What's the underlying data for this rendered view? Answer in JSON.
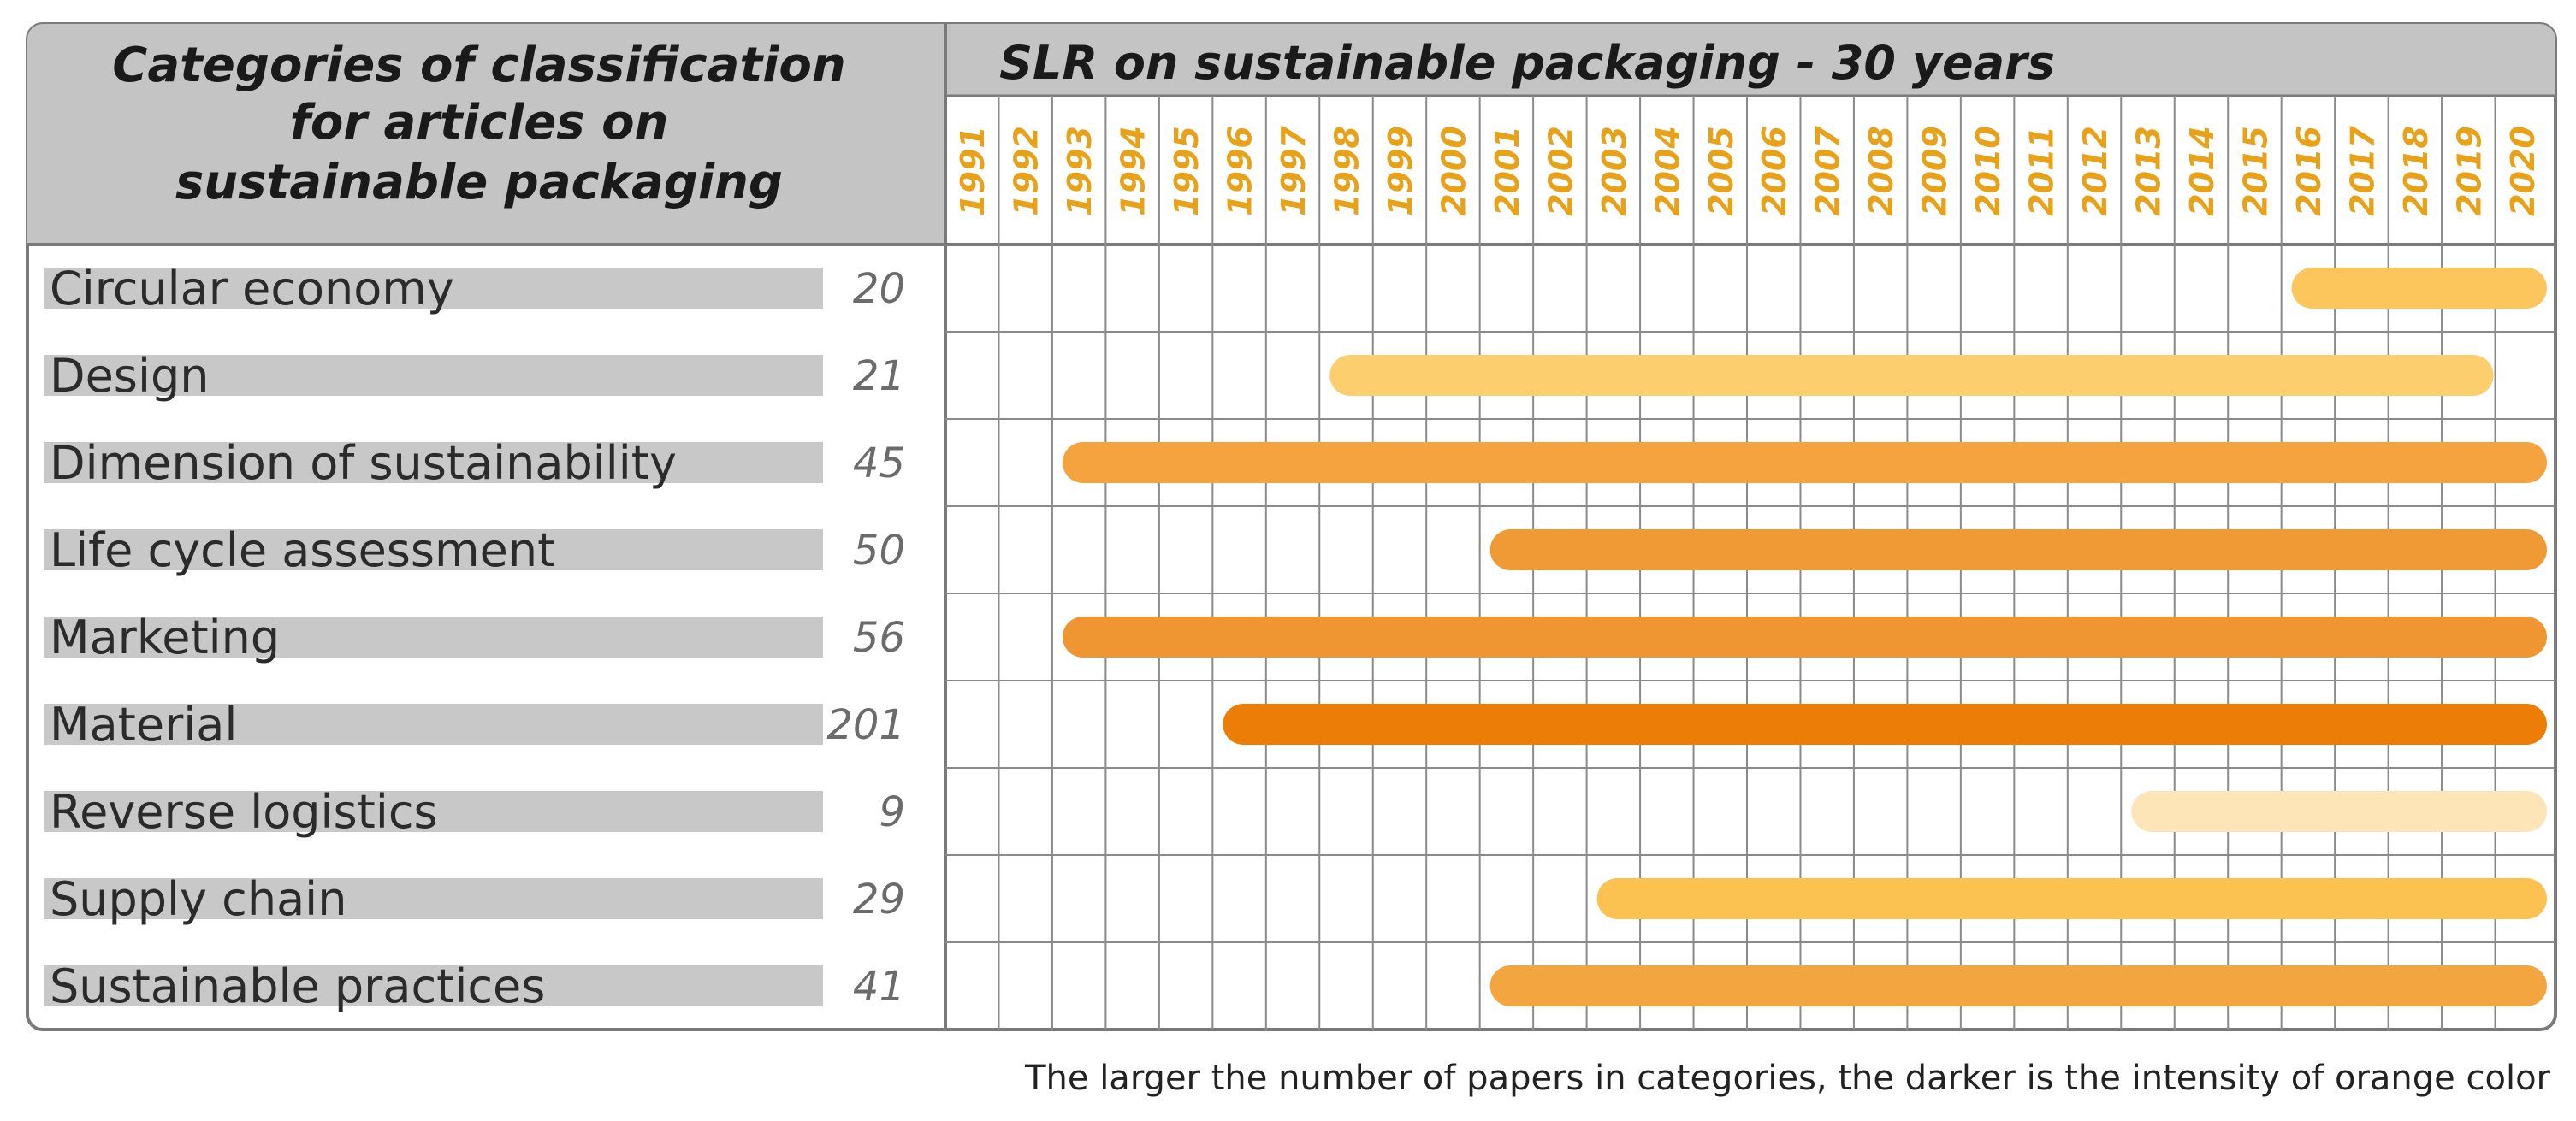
{
  "chart_data": {
    "type": "timeline",
    "left_header": [
      "Categories of classification",
      "for articles on",
      "sustainable packaging"
    ],
    "title": "SLR on sustainable packaging - 30 years",
    "years": [
      "1991",
      "1992",
      "1993",
      "1994",
      "1995",
      "1996",
      "1997",
      "1998",
      "1999",
      "2000",
      "2001",
      "2002",
      "2003",
      "2004",
      "2005",
      "2006",
      "2007",
      "2008",
      "2009",
      "2010",
      "2011",
      "2012",
      "2013",
      "2014",
      "2015",
      "2016",
      "2017",
      "2018",
      "2019",
      "2020"
    ],
    "categories": [
      {
        "name": "Circular economy",
        "count": "20",
        "start": 2016,
        "end": 2020,
        "color": "#fcc65c"
      },
      {
        "name": "Design",
        "count": "21",
        "start": 1998,
        "end": 2019,
        "color": "#fcce6e"
      },
      {
        "name": "Dimension of sustainability",
        "count": "45",
        "start": 1993,
        "end": 2020,
        "color": "#f4a33e"
      },
      {
        "name": "Life cycle assessment",
        "count": "50",
        "start": 2001,
        "end": 2020,
        "color": "#f09a35"
      },
      {
        "name": "Marketing",
        "count": "56",
        "start": 1993,
        "end": 2020,
        "color": "#ef9532"
      },
      {
        "name": "Material",
        "count": "201",
        "start": 1996,
        "end": 2020,
        "color": "#ec7d06"
      },
      {
        "name": "Reverse logistics",
        "count": "9",
        "start": 2013,
        "end": 2020,
        "color": "#fde5b8"
      },
      {
        "name": "Supply chain",
        "count": "29",
        "start": 2003,
        "end": 2020,
        "color": "#fbc252"
      },
      {
        "name": "Sustainable practices",
        "count": "41",
        "start": 2001,
        "end": 2020,
        "color": "#f3a540"
      }
    ],
    "footnote": "The larger the number of papers in categories, the darker is the intensity of orange color"
  }
}
